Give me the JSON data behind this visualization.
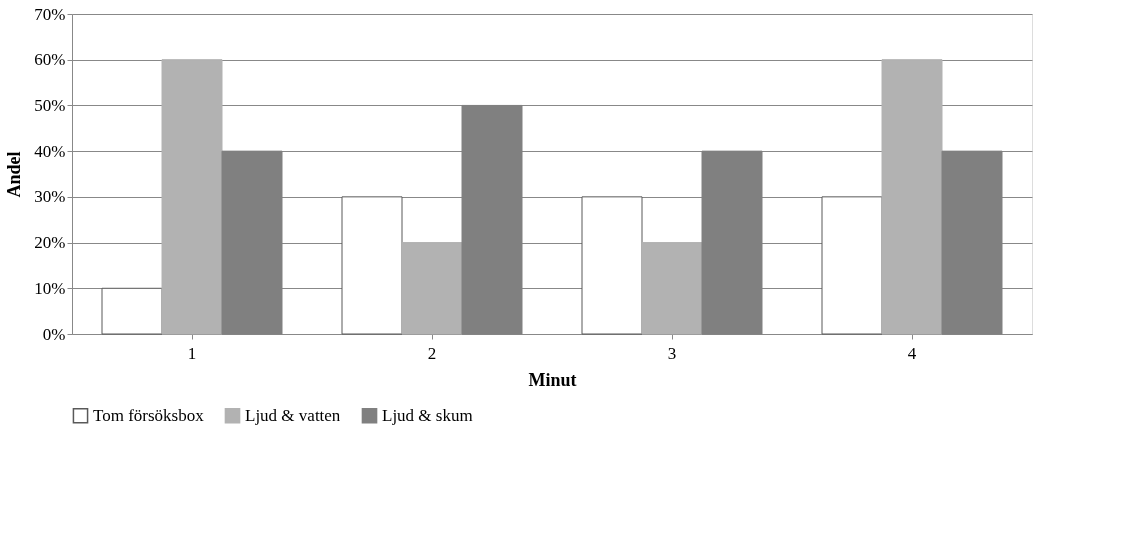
{
  "chart_data": {
    "type": "bar",
    "xlabel": "Minut",
    "ylabel": "Andel",
    "categories": [
      "1",
      "2",
      "3",
      "4"
    ],
    "series": [
      {
        "name": "Tom försöksbox",
        "color": "#595959",
        "values": [
          10,
          30,
          30,
          30
        ]
      },
      {
        "name": "Ljud & vatten",
        "color": "#b2b2b2",
        "values": [
          60,
          20,
          20,
          60
        ]
      },
      {
        "name": "Ljud & skum",
        "color": "#808080",
        "values": [
          40,
          50,
          40,
          40
        ]
      }
    ],
    "ylim": [
      0,
      70
    ],
    "yticks": [
      {
        "value": 0,
        "label": "0%"
      },
      {
        "value": 10,
        "label": "10%"
      },
      {
        "value": 20,
        "label": "20%"
      },
      {
        "value": 30,
        "label": "30%"
      },
      {
        "value": 40,
        "label": "40%"
      },
      {
        "value": 50,
        "label": "50%"
      },
      {
        "value": 60,
        "label": "60%"
      },
      {
        "value": 70,
        "label": "70%"
      }
    ],
    "grid": "y",
    "legend": "bottom"
  }
}
